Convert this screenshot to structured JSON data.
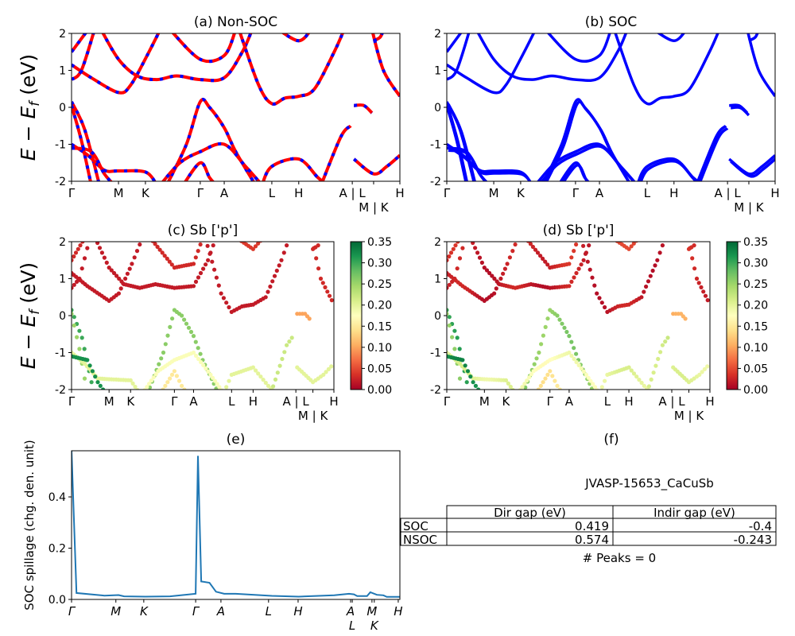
{
  "chart_data": {
    "type": "line",
    "kpath": {
      "labels": [
        "Γ",
        "M",
        "K",
        "Γ",
        "A",
        "L",
        "H",
        "A | L",
        "M | K",
        "H"
      ],
      "positions": [
        0,
        1.43,
        2.25,
        3.92,
        4.65,
        6.1,
        6.92,
        8.55,
        9.2,
        10.0
      ]
    },
    "spillage_kpath": {
      "labels": [
        "Γ",
        "M",
        "K",
        "Γ",
        "A",
        "L",
        "H",
        "A",
        "L",
        "M",
        "K",
        "H"
      ],
      "positions": [
        0,
        1.35,
        2.2,
        3.78,
        4.55,
        6.0,
        6.9,
        8.5,
        8.55,
        9.15,
        9.22,
        9.95
      ]
    },
    "energy_ylim": [
      -2,
      2
    ],
    "energy_yticks": [
      -2,
      -1,
      0,
      1,
      2
    ],
    "energy_ylabel_main": "E − E",
    "energy_ylabel_sub": "f",
    "energy_ylabel_unit": " (eV)",
    "bands": [
      {
        "pts": [
          [
            0,
            0.15
          ],
          [
            0.4,
            -0.6
          ],
          [
            0.85,
            -2.1
          ]
        ],
        "w": 0.3
      },
      {
        "pts": [
          [
            0,
            0.05
          ],
          [
            0.3,
            -0.9
          ],
          [
            0.6,
            -2.1
          ]
        ],
        "w": 0.25
      },
      {
        "pts": [
          [
            0,
            -1.0
          ],
          [
            0.5,
            -1.3
          ],
          [
            1.0,
            -1.7
          ],
          [
            1.43,
            -1.72
          ],
          [
            2.25,
            -1.75
          ],
          [
            2.6,
            -2.1
          ]
        ],
        "w": 0.2
      },
      {
        "pts": [
          [
            0,
            -1.1
          ],
          [
            0.6,
            -1.2
          ],
          [
            1.0,
            -1.8
          ],
          [
            1.3,
            -2.1
          ]
        ],
        "w": 0.32
      },
      {
        "pts": [
          [
            2.9,
            -2.1
          ],
          [
            3.5,
            -1.0
          ],
          [
            3.92,
            0.15
          ],
          [
            4.2,
            0.0
          ],
          [
            4.65,
            -0.55
          ],
          [
            5.0,
            -1.2
          ],
          [
            5.6,
            -2.1
          ]
        ],
        "w": 0.26
      },
      {
        "pts": [
          [
            2.7,
            -2.1
          ],
          [
            3.3,
            -1.5
          ],
          [
            3.92,
            -1.2
          ],
          [
            4.65,
            -1.0
          ],
          [
            5.3,
            -1.6
          ],
          [
            5.8,
            -2.1
          ]
        ],
        "w": 0.18
      },
      {
        "pts": [
          [
            3.4,
            -2.1
          ],
          [
            3.92,
            -1.5
          ],
          [
            4.2,
            -1.9
          ],
          [
            4.4,
            -2.1
          ]
        ],
        "w": 0.15
      },
      {
        "pts": [
          [
            5.8,
            -2.1
          ],
          [
            6.1,
            -1.6
          ],
          [
            6.92,
            -1.4
          ],
          [
            7.5,
            -1.9
          ],
          [
            7.8,
            -2.1
          ]
        ],
        "w": 0.2
      },
      {
        "pts": [
          [
            7.6,
            -2.1
          ],
          [
            8.2,
            -0.8
          ],
          [
            8.5,
            -0.5
          ]
        ],
        "w": 0.22
      },
      {
        "pts": [
          [
            8.6,
            -1.4
          ],
          [
            9.2,
            -1.8
          ],
          [
            9.6,
            -1.6
          ],
          [
            10,
            -1.3
          ]
        ],
        "w": 0.2
      },
      {
        "pts": [
          [
            8.6,
            0.05
          ],
          [
            8.9,
            0.05
          ],
          [
            9.15,
            -0.15
          ]
        ],
        "w": 0.1
      },
      {
        "pts": [
          [
            0,
            0.75
          ],
          [
            0.3,
            1.0
          ],
          [
            0.7,
            2.1
          ]
        ],
        "w": 0.02
      },
      {
        "pts": [
          [
            0,
            1.15
          ],
          [
            0.6,
            0.8
          ],
          [
            1.43,
            0.4
          ],
          [
            1.8,
            0.6
          ],
          [
            2.3,
            1.4
          ],
          [
            2.7,
            2.1
          ]
        ],
        "w": 0.02
      },
      {
        "pts": [
          [
            0,
            1.5
          ],
          [
            0.5,
            2.1
          ]
        ],
        "w": 0.03
      },
      {
        "pts": [
          [
            0.9,
            2.1
          ],
          [
            1.43,
            1.3
          ],
          [
            2.0,
            0.85
          ],
          [
            2.6,
            0.75
          ],
          [
            3.2,
            0.85
          ],
          [
            3.92,
            0.75
          ],
          [
            4.65,
            0.8
          ],
          [
            5.2,
            1.5
          ],
          [
            5.5,
            2.1
          ]
        ],
        "w": 0.02
      },
      {
        "pts": [
          [
            3.0,
            2.1
          ],
          [
            3.92,
            1.3
          ],
          [
            4.65,
            1.4
          ],
          [
            5.0,
            2.1
          ]
        ],
        "w": 0.03
      },
      {
        "pts": [
          [
            5.1,
            2.1
          ],
          [
            5.7,
            0.6
          ],
          [
            6.1,
            0.1
          ],
          [
            6.5,
            0.25
          ],
          [
            6.92,
            0.3
          ],
          [
            7.4,
            0.5
          ],
          [
            8.0,
            1.5
          ],
          [
            8.3,
            2.1
          ]
        ],
        "w": 0.02
      },
      {
        "pts": [
          [
            6.3,
            2.1
          ],
          [
            6.92,
            1.8
          ],
          [
            7.3,
            2.1
          ]
        ],
        "w": 0.04
      },
      {
        "pts": [
          [
            9.15,
            2.1
          ],
          [
            9.5,
            1.0
          ],
          [
            10,
            0.3
          ]
        ],
        "w": 0.03
      },
      {
        "pts": [
          [
            9.2,
            1.8
          ],
          [
            9.4,
            1.9
          ],
          [
            9.5,
            2.1
          ]
        ],
        "w": 0.03
      }
    ],
    "panels": [
      {
        "id": "a",
        "title": "(a) Non-SOC",
        "style": "nonsoc"
      },
      {
        "id": "b",
        "title": "(b) SOC",
        "style": "soc"
      },
      {
        "id": "c",
        "title": "(c)  Sb ['p']",
        "style": "proj"
      },
      {
        "id": "d",
        "title": "(d) Sb ['p']",
        "style": "proj"
      }
    ],
    "colorbar": {
      "range": [
        0,
        0.35
      ],
      "ticks": [
        "0.00",
        "0.05",
        "0.10",
        "0.15",
        "0.20",
        "0.25",
        "0.30",
        "0.35"
      ],
      "colormap": [
        "#a50026",
        "#d73027",
        "#f46d43",
        "#fdae61",
        "#fee08b",
        "#ffffbf",
        "#d9ef8b",
        "#a6d96a",
        "#66bd63",
        "#1a9850",
        "#006837"
      ]
    },
    "spillage": {
      "title": "(e)",
      "ylabel": "SOC spillage (chg. den. unit)",
      "ylim": [
        0,
        0.58
      ],
      "yticks": [
        "0.0",
        "0.2",
        "0.4"
      ],
      "color": "#1f77b4",
      "x": [
        0,
        0.15,
        1.0,
        1.43,
        1.6,
        2.25,
        3.0,
        3.78,
        3.85,
        3.95,
        4.2,
        4.4,
        4.65,
        5.0,
        6.1,
        6.92,
        8.0,
        8.45,
        8.6,
        8.7,
        9.0,
        9.1,
        9.3,
        9.5,
        9.6,
        10
      ],
      "y": [
        0.58,
        0.025,
        0.015,
        0.017,
        0.012,
        0.011,
        0.012,
        0.022,
        0.56,
        0.07,
        0.065,
        0.03,
        0.022,
        0.022,
        0.014,
        0.011,
        0.016,
        0.022,
        0.02,
        0.013,
        0.013,
        0.028,
        0.018,
        0.016,
        0.01,
        0.01
      ]
    },
    "table_panel": {
      "title": "(f)",
      "material": "JVASP-15653_CaCuSb",
      "columns": [
        "Dir gap (eV)",
        "Indir gap (eV)"
      ],
      "rows": [
        {
          "label": "SOC",
          "values": [
            "0.419",
            "-0.4"
          ]
        },
        {
          "label": "NSOC",
          "values": [
            "0.574",
            "-0.243"
          ]
        }
      ],
      "peaks": "# Peaks = 0"
    },
    "colors": {
      "red": "#ff0000",
      "blue": "#0000ff"
    }
  }
}
